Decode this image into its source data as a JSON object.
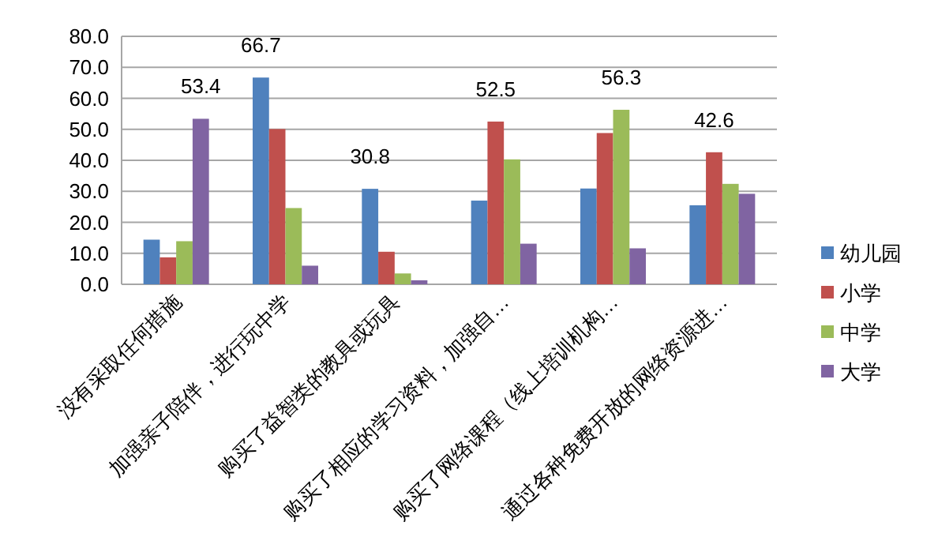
{
  "chart_data": {
    "type": "bar",
    "categories": [
      "没有采取任何措施",
      "加强亲子陪伴，进行玩中学",
      "购买了益智类的教具或玩具",
      "购买了相应的学习资料，加强自…",
      "购买了网络课程（线上培训机构…",
      "通过各种免费开放的网络资源进…"
    ],
    "series": [
      {
        "name": "幼儿园",
        "color": "#4f81bd",
        "values": [
          14.4,
          66.7,
          30.8,
          27.0,
          30.9,
          25.5
        ],
        "value_labels": [
          null,
          "66.7",
          "30.8",
          null,
          null,
          null
        ]
      },
      {
        "name": "小学",
        "color": "#c0504d",
        "values": [
          8.7,
          50.1,
          10.5,
          52.5,
          48.8,
          42.6
        ],
        "value_labels": [
          null,
          null,
          null,
          "52.5",
          null,
          "42.6"
        ]
      },
      {
        "name": "中学",
        "color": "#9bbb59",
        "values": [
          13.9,
          24.6,
          3.5,
          40.3,
          56.3,
          32.4
        ],
        "value_labels": [
          null,
          null,
          null,
          null,
          "56.3",
          null
        ]
      },
      {
        "name": "大学",
        "color": "#8064a2",
        "values": [
          53.4,
          6.0,
          1.3,
          13.1,
          11.6,
          29.2
        ],
        "value_labels": [
          "53.4",
          null,
          null,
          null,
          null,
          null
        ]
      }
    ],
    "ylim": [
      0,
      80
    ],
    "yticks": [
      {
        "value": 0,
        "label": "0.0"
      },
      {
        "value": 10,
        "label": "10.0"
      },
      {
        "value": 20,
        "label": "20.0"
      },
      {
        "value": 30,
        "label": "30.0"
      },
      {
        "value": 40,
        "label": "40.0"
      },
      {
        "value": 50,
        "label": "50.0"
      },
      {
        "value": 60,
        "label": "60.0"
      },
      {
        "value": 70,
        "label": "70.0"
      },
      {
        "value": 80,
        "label": "80.0"
      }
    ],
    "grid": "y",
    "legend": "right"
  }
}
